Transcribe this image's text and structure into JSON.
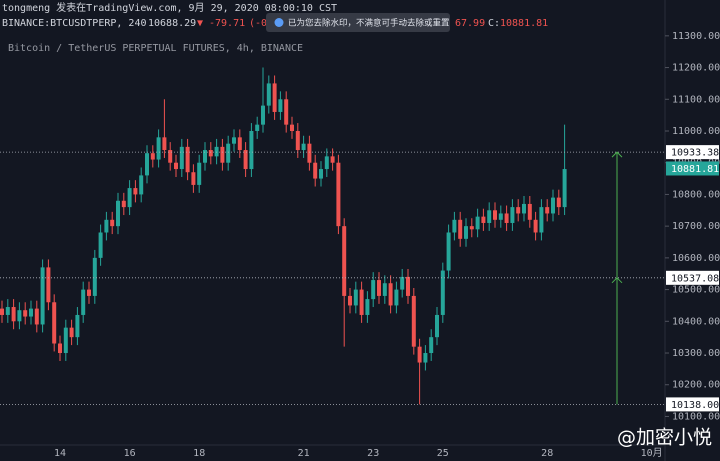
{
  "header": {
    "line1": "tongmeng 发表在TradingView.com, 9月 29, 2020 08:00:10 CST",
    "symbol": "BINANCE:BTCUSDTPERP, 240",
    "price": "10688.29",
    "arrow": "▼",
    "change": "-79.71",
    "change_pct": "(-0",
    "popup": "已为您去除水印，不满意可手动去除或重置",
    "o_partial": "67.99",
    "c_label": "C:",
    "c_value": "10881.81",
    "subtitle": "Bitcoin / TetherUS PERPETUAL FUTURES, 4h, BINANCE"
  },
  "watermark": "@加密小悦",
  "chart_data": {
    "type": "candlestick",
    "up_color": "#26a69a",
    "down_color": "#ef5350",
    "categories": [
      null,
      null,
      null,
      null,
      null,
      null,
      null,
      null,
      null,
      null,
      "14",
      null,
      null,
      null,
      null,
      null,
      null,
      null,
      null,
      null,
      null,
      null,
      "16",
      null,
      null,
      null,
      null,
      null,
      null,
      null,
      null,
      null,
      null,
      null,
      "18",
      null,
      null,
      null,
      null,
      null,
      null,
      null,
      null,
      null,
      null,
      null,
      null,
      null,
      null,
      null,
      null,
      null,
      "21",
      null,
      null,
      null,
      null,
      null,
      null,
      null,
      null,
      null,
      null,
      null,
      "23",
      null,
      null,
      null,
      null,
      null,
      null,
      null,
      null,
      null,
      null,
      null,
      "25",
      null,
      null,
      null,
      null,
      null,
      null,
      null,
      null,
      null,
      null,
      null,
      null,
      null,
      null,
      null,
      null,
      null,
      "28",
      null,
      null,
      null,
      null,
      null,
      null,
      null,
      null,
      null,
      null,
      null,
      null,
      null,
      null,
      null,
      null,
      null,
      "10月",
      null,
      null
    ],
    "open": [
      10440,
      10420,
      10445,
      10400,
      10435,
      10415,
      10440,
      10390,
      10570,
      10460,
      10330,
      10300,
      10380,
      10350,
      10420,
      10500,
      10480,
      10600,
      10680,
      10720,
      10700,
      10780,
      10760,
      10820,
      10800,
      10860,
      10930,
      10910,
      10980,
      10940,
      10900,
      10880,
      10950,
      10870,
      10830,
      10900,
      10940,
      10920,
      10950,
      10900,
      10960,
      10980,
      10940,
      10880,
      11000,
      11020,
      11080,
      11150,
      11060,
      11100,
      11020,
      11000,
      10940,
      10960,
      10900,
      10850,
      10880,
      10920,
      10900,
      10700,
      10480,
      10450,
      10500,
      10420,
      10470,
      10530,
      10480,
      10520,
      10450,
      10500,
      10540,
      10480,
      10320,
      10270,
      10300,
      10350,
      10420,
      10560,
      10680,
      10720,
      10660,
      10700,
      10690,
      10730,
      10710,
      10750,
      10720,
      10740,
      10710,
      10760,
      10740,
      10770,
      10720,
      10680,
      10760,
      10740,
      10790,
      10760,
      null,
      null,
      null,
      null,
      null,
      null,
      null,
      null,
      null,
      null,
      null,
      null,
      null,
      null,
      null,
      null,
      null
    ],
    "high": [
      10465,
      10470,
      10470,
      10460,
      10460,
      10465,
      10465,
      10595,
      10595,
      10485,
      10355,
      10405,
      10405,
      10445,
      10525,
      10525,
      10625,
      10705,
      10745,
      10745,
      10805,
      10805,
      10845,
      10845,
      10885,
      10955,
      10955,
      11005,
      11100,
      10965,
      10925,
      10975,
      10975,
      10895,
      10925,
      10965,
      10965,
      10975,
      10975,
      10985,
      11005,
      11005,
      10965,
      11025,
      11045,
      11200,
      11175,
      11175,
      11125,
      11125,
      11045,
      11025,
      10985,
      10985,
      10925,
      10905,
      10945,
      10945,
      10925,
      10725,
      10505,
      10525,
      10525,
      10495,
      10555,
      10555,
      10545,
      10545,
      10525,
      10565,
      10565,
      10505,
      10345,
      10325,
      10375,
      10445,
      10585,
      10705,
      10745,
      10745,
      10725,
      10725,
      10755,
      10755,
      10775,
      10775,
      10765,
      10765,
      10785,
      10785,
      10795,
      10795,
      10745,
      10785,
      10785,
      10815,
      10815,
      11020,
      null,
      null,
      null,
      null,
      null,
      null,
      null,
      null,
      null,
      null,
      null,
      null,
      null,
      null,
      null,
      null,
      null
    ],
    "low": [
      10395,
      10395,
      10375,
      10375,
      10390,
      10390,
      10365,
      10365,
      10435,
      10305,
      10275,
      10275,
      10325,
      10325,
      10395,
      10455,
      10455,
      10575,
      10655,
      10675,
      10675,
      10735,
      10735,
      10775,
      10775,
      10835,
      10885,
      10885,
      10915,
      10875,
      10855,
      10855,
      10845,
      10805,
      10805,
      10875,
      10895,
      10895,
      10875,
      10875,
      10935,
      10915,
      10855,
      10855,
      10975,
      10995,
      11055,
      11035,
      11035,
      10995,
      10975,
      10915,
      10915,
      10875,
      10825,
      10825,
      10855,
      10875,
      10675,
      10320,
      10425,
      10425,
      10395,
      10395,
      10445,
      10455,
      10455,
      10425,
      10425,
      10475,
      10455,
      10295,
      10138,
      10245,
      10275,
      10325,
      10395,
      10535,
      10655,
      10635,
      10635,
      10665,
      10665,
      10685,
      10685,
      10695,
      10695,
      10685,
      10685,
      10715,
      10715,
      10695,
      10655,
      10655,
      10715,
      10715,
      10735,
      10735,
      null,
      null,
      null,
      null,
      null,
      null,
      null,
      null,
      null,
      null,
      null,
      null,
      null,
      null,
      null,
      null,
      null
    ],
    "close": [
      10420,
      10445,
      10400,
      10435,
      10415,
      10440,
      10390,
      10570,
      10460,
      10330,
      10300,
      10380,
      10350,
      10420,
      10500,
      10480,
      10600,
      10680,
      10720,
      10700,
      10780,
      10760,
      10820,
      10800,
      10860,
      10930,
      10910,
      10980,
      10940,
      10900,
      10880,
      10950,
      10870,
      10830,
      10900,
      10940,
      10920,
      10950,
      10900,
      10960,
      10980,
      10940,
      10880,
      11000,
      11020,
      11080,
      11150,
      11060,
      11100,
      11020,
      11000,
      10940,
      10960,
      10900,
      10850,
      10880,
      10920,
      10900,
      10700,
      10480,
      10450,
      10500,
      10420,
      10470,
      10530,
      10480,
      10520,
      10450,
      10500,
      10540,
      10480,
      10320,
      10270,
      10300,
      10350,
      10420,
      10560,
      10680,
      10720,
      10660,
      10700,
      10690,
      10730,
      10710,
      10750,
      10720,
      10740,
      10710,
      10760,
      10740,
      10770,
      10720,
      10680,
      10760,
      10740,
      10790,
      10760,
      10880,
      null,
      null,
      null,
      null,
      null,
      null,
      null,
      null,
      null,
      null,
      null,
      null,
      null,
      null,
      null,
      null,
      null
    ],
    "ylim": [
      10010,
      11413
    ],
    "yticks": [
      {
        "value": 10100,
        "label": "10100.00"
      },
      {
        "value": 10200,
        "label": "10200.00"
      },
      {
        "value": 10300,
        "label": "10300.00"
      },
      {
        "value": 10400,
        "label": "10400.00"
      },
      {
        "value": 10500,
        "label": "10500.00"
      },
      {
        "value": 10600,
        "label": "10600.00"
      },
      {
        "value": 10700,
        "label": "10700.00"
      },
      {
        "value": 10800,
        "label": "10800.00"
      },
      {
        "value": 10900,
        "label": "10900.00"
      },
      {
        "value": 11000,
        "label": "11000.00"
      },
      {
        "value": 11100,
        "label": "11100.00"
      },
      {
        "value": 11200,
        "label": "11200.00"
      },
      {
        "value": 11300,
        "label": "11300.00"
      }
    ],
    "price_lines": [
      10933.38,
      10537.08,
      {
        "value": 10138,
        "label": "10138.00"
      }
    ],
    "last_price": 10881.81,
    "grid": false
  }
}
